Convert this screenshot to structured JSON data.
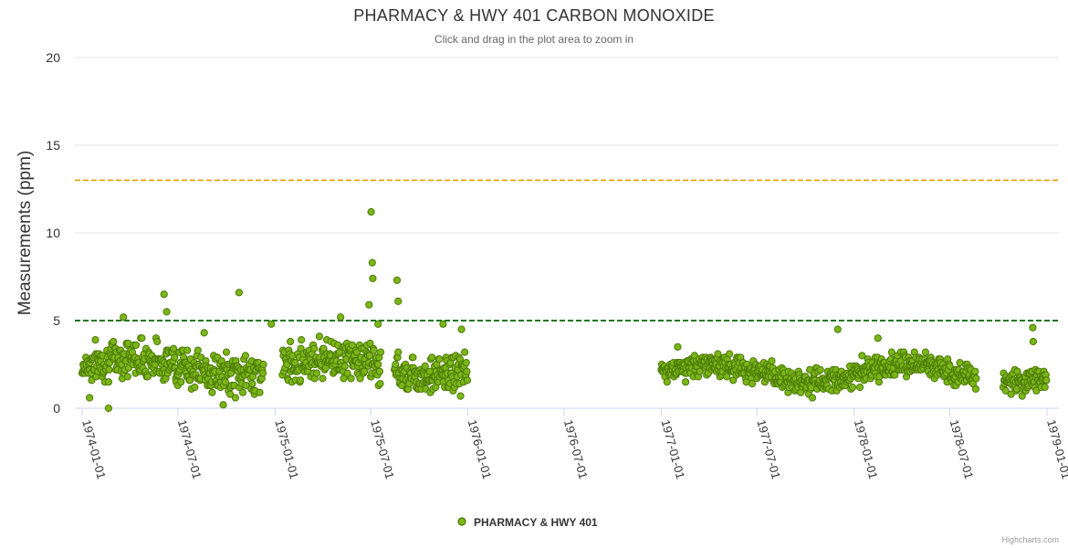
{
  "chart_data": {
    "type": "scatter",
    "title": "PHARMACY & HWY 401 CARBON MONOXIDE",
    "subtitle": "Click and drag in the plot area to zoom in",
    "ylabel": "Measurements (ppm)",
    "xlabel": "",
    "ylim": [
      0,
      20
    ],
    "y_ticks": [
      "0",
      "5",
      "10",
      "15",
      "20"
    ],
    "x_range": [
      "1974-01-01",
      "1979-01-01"
    ],
    "x_ticks": [
      "1974-01-01",
      "1974-07-01",
      "1975-01-01",
      "1975-07-01",
      "1976-01-01",
      "1976-07-01",
      "1977-01-01",
      "1977-07-01",
      "1978-01-01",
      "1978-07-01",
      "1979-01-01"
    ],
    "reference_lines": [
      {
        "value": 13,
        "color": "#e8a317",
        "style": "dashed"
      },
      {
        "value": 5,
        "color": "#006400",
        "style": "dashed"
      }
    ],
    "series": [
      {
        "name": "PHARMACY & HWY 401",
        "color": "#7cb518",
        "stroke": "#4b7a08",
        "segments": [
          {
            "start": "1974-01-01",
            "end": "1975-12-31",
            "base": 2.4,
            "spread": 1.6
          },
          {
            "start": "1977-01-01",
            "end": "1978-12-31",
            "base": 2.0,
            "spread": 1.0
          }
        ],
        "notable_points": [
          {
            "x": "1974-01-15",
            "y": 0.6
          },
          {
            "x": "1974-02-20",
            "y": 0.0
          },
          {
            "x": "1974-03-20",
            "y": 5.2
          },
          {
            "x": "1974-06-05",
            "y": 6.5
          },
          {
            "x": "1974-06-10",
            "y": 5.5
          },
          {
            "x": "1974-08-20",
            "y": 4.3
          },
          {
            "x": "1974-09-25",
            "y": 0.2
          },
          {
            "x": "1974-10-25",
            "y": 6.6
          },
          {
            "x": "1974-12-25",
            "y": 4.8
          },
          {
            "x": "1975-05-05",
            "y": 5.2
          },
          {
            "x": "1975-06-28",
            "y": 5.9
          },
          {
            "x": "1975-07-02",
            "y": 11.2
          },
          {
            "x": "1975-07-04",
            "y": 8.3
          },
          {
            "x": "1975-07-05",
            "y": 7.4
          },
          {
            "x": "1975-07-15",
            "y": 4.8
          },
          {
            "x": "1975-08-20",
            "y": 7.3
          },
          {
            "x": "1975-08-22",
            "y": 6.1
          },
          {
            "x": "1975-11-15",
            "y": 4.8
          },
          {
            "x": "1975-12-20",
            "y": 4.5
          },
          {
            "x": "1977-02-01",
            "y": 3.5
          },
          {
            "x": "1977-12-01",
            "y": 4.5
          },
          {
            "x": "1978-02-15",
            "y": 4.0
          },
          {
            "x": "1978-12-05",
            "y": 4.6
          },
          {
            "x": "1978-12-06",
            "y": 3.8
          }
        ]
      }
    ]
  },
  "legend": {
    "label": "PHARMACY & HWY 401"
  },
  "credits": "Highcharts.com"
}
